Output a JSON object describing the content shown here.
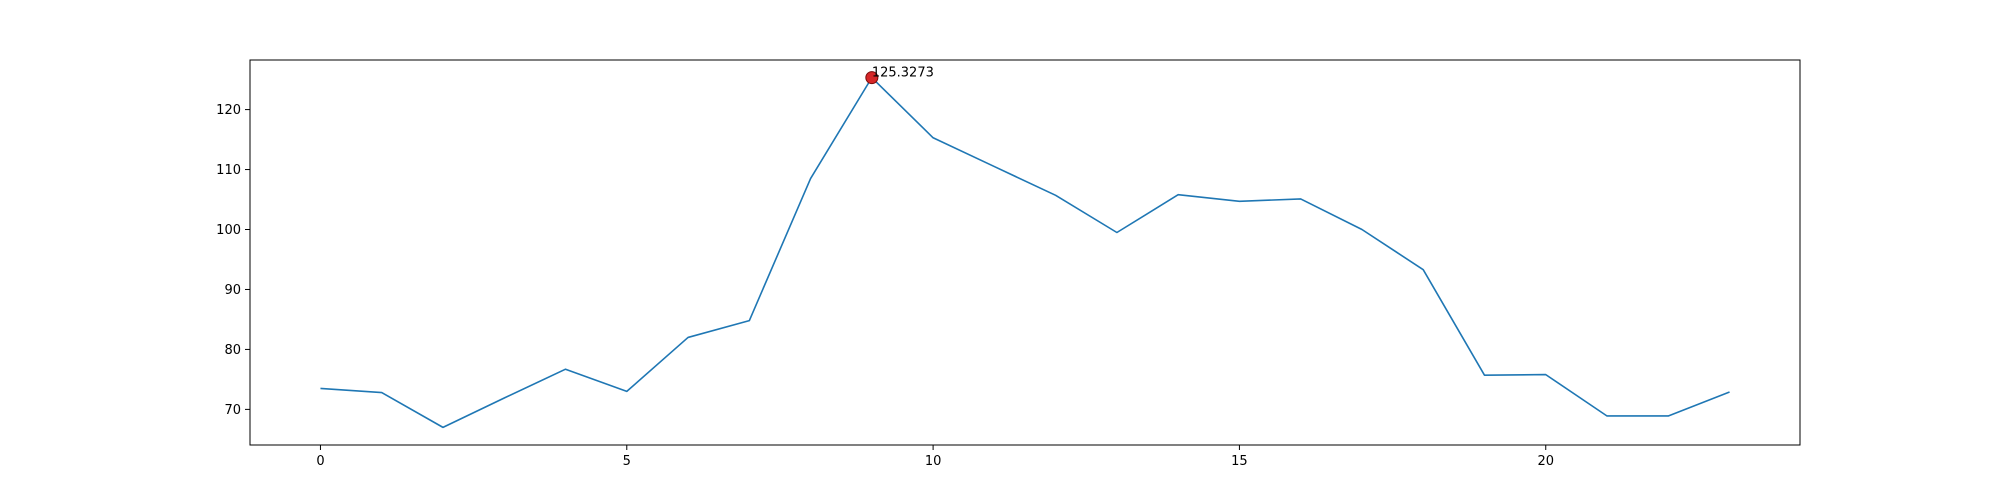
{
  "chart_data": {
    "type": "line",
    "title": "",
    "xlabel": "",
    "ylabel": "",
    "x": [
      0,
      1,
      2,
      3,
      4,
      5,
      6,
      7,
      8,
      9,
      10,
      11,
      12,
      13,
      14,
      15,
      16,
      17,
      18,
      19,
      20,
      21,
      22,
      23
    ],
    "series": [
      {
        "values": [
          73.5,
          72.8,
          67.0,
          71.9,
          76.7,
          73.0,
          82.0,
          84.8,
          108.5,
          125.3273,
          115.3,
          110.5,
          105.7,
          99.5,
          105.8,
          104.7,
          105.1,
          100.0,
          93.3,
          75.7,
          75.8,
          68.9,
          68.9,
          72.9
        ],
        "color": "#1f77b4"
      }
    ],
    "xlim": [
      -1.15,
      24.15
    ],
    "ylim": [
      64.06,
      128.27
    ],
    "xticks": [
      0,
      5,
      10,
      15,
      20
    ],
    "yticks": [
      70,
      80,
      90,
      100,
      110,
      120
    ],
    "grid": false,
    "highlight": {
      "x": 9,
      "y": 125.3273,
      "label": "125.3273",
      "color": "#d62728"
    }
  }
}
